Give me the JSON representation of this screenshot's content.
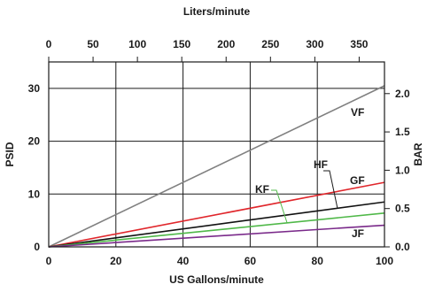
{
  "chart_data": {
    "type": "line",
    "title": "",
    "top_axis": {
      "label": "Liters/minute",
      "ticks": [
        "0",
        "50",
        "100",
        "150",
        "200",
        "250",
        "300",
        "350"
      ],
      "tick_values": [
        0,
        50,
        100,
        150,
        200,
        250,
        300,
        350
      ]
    },
    "bottom_axis": {
      "label": "US Gallons/minute",
      "ticks": [
        "0",
        "20",
        "40",
        "60",
        "80",
        "100"
      ],
      "tick_values": [
        0,
        20,
        40,
        60,
        80,
        100
      ],
      "range": [
        0,
        100
      ]
    },
    "left_axis": {
      "label": "PSID",
      "ticks": [
        "0",
        "10",
        "20",
        "30"
      ],
      "tick_values": [
        0,
        10,
        20,
        30
      ],
      "range": [
        0,
        35
      ]
    },
    "right_axis": {
      "label": "BAR",
      "ticks": [
        "0.0",
        "0.5",
        "1.0",
        "1.5",
        "2.0"
      ],
      "tick_values": [
        0.0,
        0.5,
        1.0,
        1.5,
        2.0
      ]
    },
    "grid": true,
    "series": [
      {
        "name": "VF",
        "x": [
          0,
          100
        ],
        "y": [
          0,
          30.5
        ],
        "color": "#808080"
      },
      {
        "name": "GF",
        "x": [
          0,
          100
        ],
        "y": [
          0,
          12.2
        ],
        "color": "#e0262b"
      },
      {
        "name": "HF",
        "x": [
          0,
          100
        ],
        "y": [
          0,
          8.5
        ],
        "color": "#111111"
      },
      {
        "name": "KF",
        "x": [
          0,
          100
        ],
        "y": [
          0,
          6.4
        ],
        "color": "#4fb848"
      },
      {
        "name": "JF",
        "x": [
          0,
          100
        ],
        "y": [
          0,
          4.1
        ],
        "color": "#7a2a8a"
      }
    ]
  }
}
